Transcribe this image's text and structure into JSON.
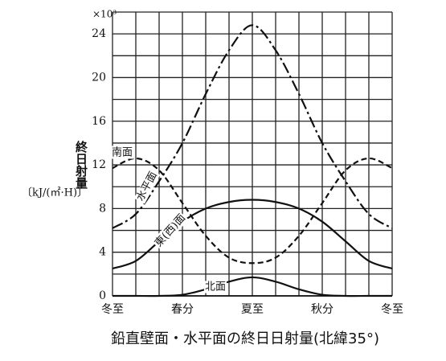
{
  "chart_data": {
    "type": "line",
    "title": "鉛直壁面・水平面の終日日射量(北緯35°)",
    "y_multiplier": "×10³",
    "y_label": "終日射量",
    "y_unit": "〔kJ/(㎡·H)〕",
    "xlim": [
      0,
      12
    ],
    "xticks": [
      {
        "value": 0,
        "label": "冬至"
      },
      {
        "value": 3,
        "label": "春分"
      },
      {
        "value": 6,
        "label": "夏至"
      },
      {
        "value": 9,
        "label": "秋分"
      },
      {
        "value": 12,
        "label": "冬至"
      }
    ],
    "minor_xticks": [
      1,
      2,
      4,
      5,
      7,
      8,
      10,
      11
    ],
    "ylim": [
      0,
      26
    ],
    "yticks": [
      0,
      4,
      8,
      12,
      16,
      20,
      24
    ],
    "minor_yticks": [
      2,
      6,
      10,
      14,
      18,
      22,
      26
    ],
    "grid": true,
    "x": [
      0,
      1,
      2,
      3,
      4,
      5,
      6,
      7,
      8,
      9,
      10,
      11,
      12
    ],
    "series": [
      {
        "name": "水平面",
        "color": "#111111",
        "dash": "14 4 3 4",
        "values": [
          6.2,
          7.5,
          10.5,
          14,
          18.5,
          22.5,
          24.8,
          22.5,
          18.5,
          14,
          10.5,
          7.5,
          6.2
        ]
      },
      {
        "name": "南面",
        "color": "#111111",
        "dash": "7 4",
        "values": [
          11.7,
          12.6,
          11.5,
          8.5,
          5.5,
          3.5,
          3,
          3.5,
          5.5,
          8.5,
          11.5,
          12.6,
          11.7
        ]
      },
      {
        "name": "東(西)面",
        "color": "#111111",
        "dash": "",
        "values": [
          2.5,
          3.2,
          5,
          6.8,
          8,
          8.6,
          8.8,
          8.6,
          8,
          6.8,
          5,
          3.2,
          2.5
        ]
      },
      {
        "name": "北面",
        "color": "#111111",
        "dash": "",
        "values": [
          0,
          0,
          0,
          0.1,
          0.6,
          1.3,
          1.7,
          1.3,
          0.6,
          0.1,
          0,
          0,
          0
        ]
      }
    ]
  }
}
